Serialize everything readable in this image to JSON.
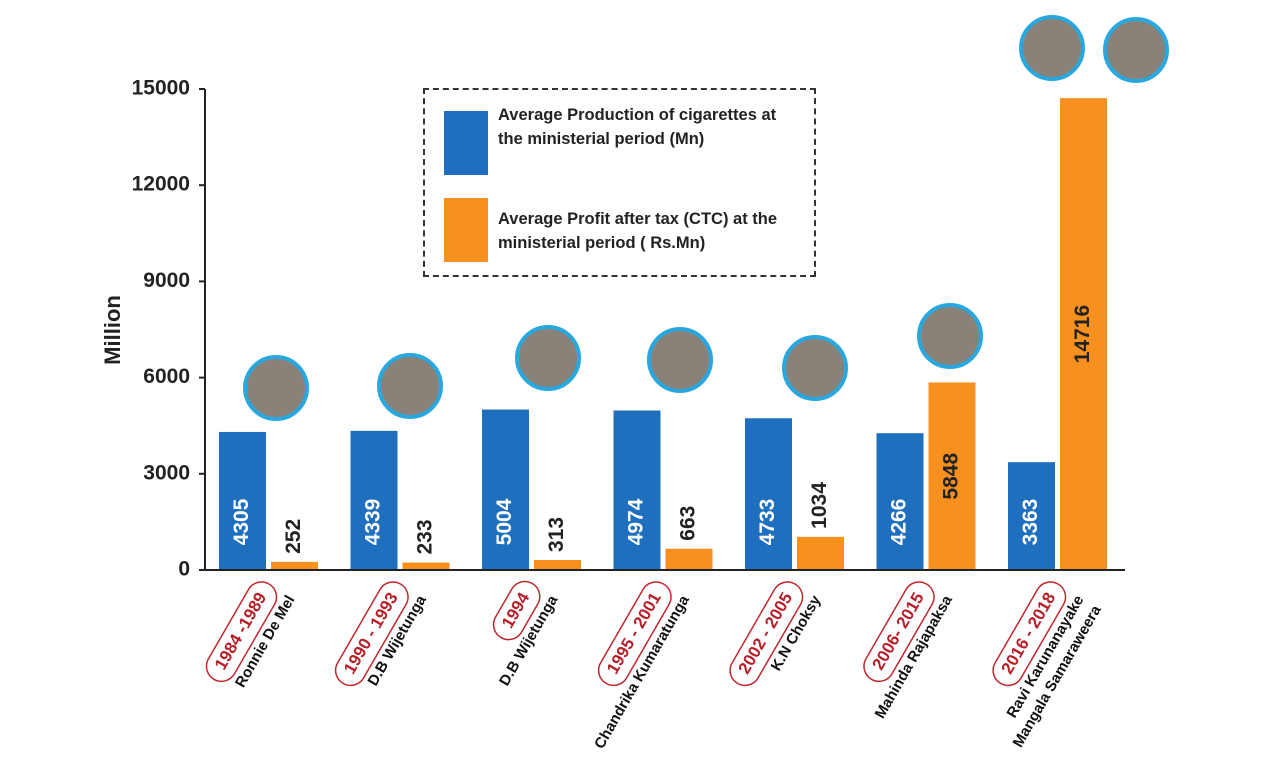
{
  "chart_data": {
    "type": "bar",
    "y_label": "Million",
    "categories": [
      "1984 -1989",
      "1990 - 1993",
      "1994",
      "1995 - 2001",
      "2002 - 2005",
      "2006- 2015",
      "2016 - 2018"
    ],
    "ministers": [
      [
        "Ronnie De Mel"
      ],
      [
        "D.B Wijetunga"
      ],
      [
        "D.B Wijetunga"
      ],
      [
        "Chandrika Kumaratunga"
      ],
      [
        "K.N Choksy"
      ],
      [
        "Mahinda Rajapaksa"
      ],
      [
        "Ravi Karunanayake",
        "Mangala Samaraweera"
      ]
    ],
    "series": [
      {
        "name": "Average Production of cigarettes at the ministerial period (Mn)",
        "color": "#1f6fbf",
        "values": [
          4305,
          4339,
          5004,
          4974,
          4733,
          4266,
          3363
        ]
      },
      {
        "name": "Average Profit after tax (CTC) at the ministerial period ( Rs.Mn)",
        "color": "#f7901e",
        "values": [
          252,
          233,
          313,
          663,
          1034,
          5848,
          14716
        ]
      }
    ],
    "ylim": [
      0,
      15000
    ],
    "yticks": [
      0,
      3000,
      6000,
      9000,
      12000,
      15000
    ]
  }
}
